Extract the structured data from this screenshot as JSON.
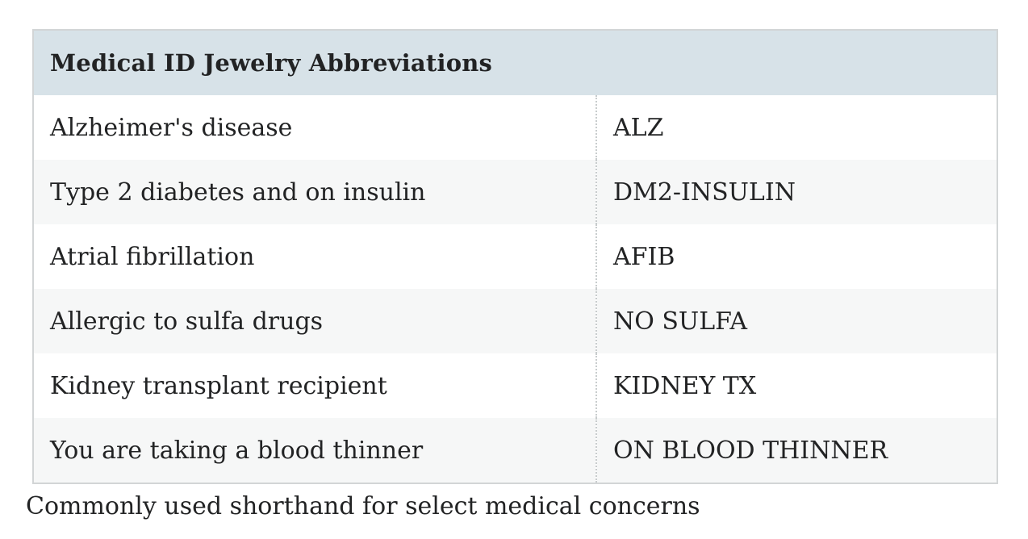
{
  "table": {
    "title": "Medical ID Jewelry Abbreviations",
    "column_semantics": [
      "medical_concern",
      "abbreviation"
    ],
    "rows": [
      {
        "label": "Alzheimer's disease",
        "abbr": "ALZ"
      },
      {
        "label": "Type 2 diabetes and on insulin",
        "abbr": "DM2-INSULIN"
      },
      {
        "label": "Atrial fibrillation",
        "abbr": "AFIB"
      },
      {
        "label": "Allergic to sulfa drugs",
        "abbr": "NO SULFA"
      },
      {
        "label": "Kidney transplant recipient",
        "abbr": "KIDNEY TX"
      },
      {
        "label": "You are taking a blood thinner",
        "abbr": "ON BLOOD THINNER"
      }
    ],
    "caption": "Commonly used shorthand for select medical concerns"
  },
  "colors": {
    "header_bg": "#d7e2e8",
    "row_alt_bg": "#f6f7f7",
    "row_bg": "#ffffff",
    "border": "#d2d5d6",
    "column_divider": "#c8cccd",
    "text": "#222324",
    "page_bg": "#ffffff"
  }
}
